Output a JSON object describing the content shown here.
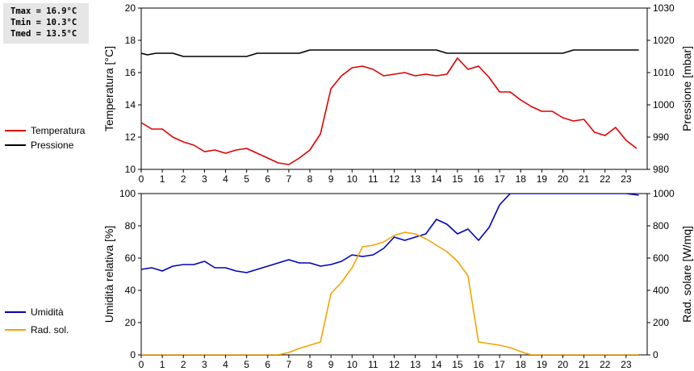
{
  "stats": {
    "tmax": "Tmax = 16.9°C",
    "tmin": "Tmin = 10.3°C",
    "tmed": "Tmed = 13.5°C"
  },
  "colors": {
    "temperature": "#dd0000",
    "pressure": "#000000",
    "humidity": "#0000bb",
    "radiation": "#f5a300"
  },
  "chart_data": [
    {
      "type": "line",
      "xlabel": "",
      "ylabel": "Temperatura [°C]",
      "y2label": "Pressione [mbar]",
      "xlim": [
        0,
        24
      ],
      "xticks": [
        0,
        1,
        2,
        3,
        4,
        5,
        6,
        7,
        8,
        9,
        10,
        11,
        12,
        13,
        14,
        15,
        16,
        17,
        18,
        19,
        20,
        21,
        22,
        23
      ],
      "ylim": [
        10,
        20
      ],
      "yticks": [
        10,
        12,
        14,
        16,
        18,
        20
      ],
      "y2lim": [
        980,
        1030
      ],
      "y2ticks": [
        980,
        990,
        1000,
        1010,
        1020,
        1030
      ],
      "grid": false,
      "legend_position": "left",
      "series": [
        {
          "name": "Temperatura",
          "axis": "left",
          "x": [
            0,
            0.5,
            1,
            1.5,
            2,
            2.5,
            3,
            3.5,
            4,
            4.5,
            5,
            5.5,
            6,
            6.5,
            7,
            7.5,
            8,
            8.5,
            9,
            9.5,
            10,
            10.5,
            11,
            11.5,
            12,
            12.5,
            13,
            13.5,
            14,
            14.5,
            15,
            15.5,
            16,
            16.5,
            17,
            17.5,
            18,
            18.5,
            19,
            19.5,
            20,
            20.5,
            21,
            21.5,
            22,
            22.5,
            23,
            23.5
          ],
          "values": [
            12.9,
            12.5,
            12.5,
            12.0,
            11.7,
            11.5,
            11.1,
            11.2,
            11.0,
            11.2,
            11.3,
            11.0,
            10.7,
            10.4,
            10.3,
            10.7,
            11.2,
            12.2,
            15.0,
            15.8,
            16.3,
            16.4,
            16.2,
            15.8,
            15.9,
            16.0,
            15.8,
            15.9,
            15.8,
            15.9,
            16.9,
            16.2,
            16.4,
            15.7,
            14.8,
            14.8,
            14.3,
            13.9,
            13.6,
            13.6,
            13.2,
            13.0,
            13.1,
            12.3,
            12.1,
            12.6,
            11.8,
            11.3
          ]
        },
        {
          "name": "Pressione",
          "axis": "right",
          "x": [
            0,
            0.3,
            0.7,
            1,
            1.5,
            2,
            3,
            4,
            5,
            5.5,
            6,
            6.5,
            7,
            7.5,
            8,
            9,
            10,
            11,
            12,
            13,
            14,
            14.5,
            15,
            16,
            17,
            18,
            19,
            20,
            20.5,
            21,
            22,
            23,
            23.6
          ],
          "values": [
            1016,
            1015.5,
            1016,
            1016,
            1016,
            1015,
            1015,
            1015,
            1015,
            1016,
            1016,
            1016,
            1016,
            1016,
            1017,
            1017,
            1017,
            1017,
            1017,
            1017,
            1017,
            1016,
            1016,
            1016,
            1016,
            1016,
            1016,
            1016,
            1017,
            1017,
            1017,
            1017,
            1017
          ]
        }
      ]
    },
    {
      "type": "line",
      "xlabel": "",
      "ylabel": "Umidità relativa [%]",
      "y2label": "Rad. solare [W/mq]",
      "xlim": [
        0,
        24
      ],
      "xticks": [
        0,
        1,
        2,
        3,
        4,
        5,
        6,
        7,
        8,
        9,
        10,
        11,
        12,
        13,
        14,
        15,
        16,
        17,
        18,
        19,
        20,
        21,
        22,
        23
      ],
      "ylim": [
        0,
        100
      ],
      "yticks": [
        0,
        20,
        40,
        60,
        80,
        100
      ],
      "y2lim": [
        0,
        1000
      ],
      "y2ticks": [
        0,
        200,
        400,
        600,
        800,
        1000
      ],
      "grid": false,
      "legend_position": "left",
      "series": [
        {
          "name": "Umidità",
          "axis": "left",
          "x": [
            0,
            0.5,
            1,
            1.5,
            2,
            2.5,
            3,
            3.5,
            4,
            4.5,
            5,
            5.5,
            6,
            6.5,
            7,
            7.5,
            8,
            8.5,
            9,
            9.5,
            10,
            10.5,
            11,
            11.5,
            12,
            12.5,
            13,
            13.5,
            14,
            14.5,
            15,
            15.5,
            16,
            16.5,
            17,
            17.5,
            18,
            19,
            20,
            21,
            22,
            23,
            23.6
          ],
          "values": [
            53,
            54,
            52,
            55,
            56,
            56,
            58,
            54,
            54,
            52,
            51,
            53,
            55,
            57,
            59,
            57,
            57,
            55,
            56,
            58,
            62,
            61,
            62,
            66,
            73,
            71,
            73,
            75,
            84,
            81,
            75,
            78,
            71,
            79,
            93,
            100,
            100,
            100,
            100,
            100,
            100,
            100,
            99
          ]
        },
        {
          "name": "Rad. sol.",
          "axis": "right",
          "x": [
            0,
            1,
            2,
            3,
            4,
            5,
            6,
            6.5,
            7,
            7.5,
            8,
            8.5,
            9,
            9.5,
            10,
            10.5,
            11,
            11.5,
            12,
            12.5,
            13,
            13.5,
            14,
            14.5,
            15,
            15.5,
            16,
            16.5,
            17,
            17.5,
            18,
            18.5,
            19,
            20,
            21,
            22,
            23,
            23.6
          ],
          "values": [
            0,
            0,
            0,
            0,
            0,
            0,
            0,
            0,
            15,
            40,
            60,
            80,
            380,
            450,
            540,
            670,
            680,
            700,
            740,
            760,
            750,
            720,
            680,
            640,
            580,
            490,
            80,
            70,
            60,
            45,
            20,
            0,
            0,
            0,
            0,
            0,
            0,
            0
          ]
        }
      ]
    }
  ]
}
